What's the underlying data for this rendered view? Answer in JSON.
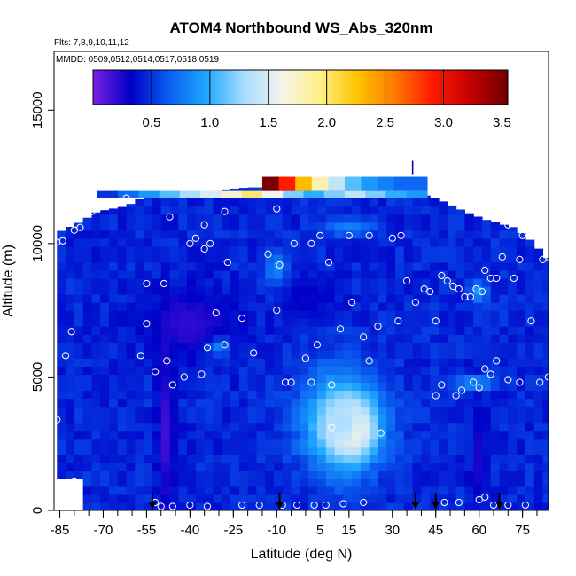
{
  "chart_data": {
    "type": "heatmap",
    "title": "ATOM4 Northbound WS_Abs_320nm",
    "subtitle_flights": "Flts: 7,8,9,10,11,12",
    "subtitle_dates": "MMDD: 0509,0512,0514,0517,0518,0519",
    "xlabel": "Latitude (deg N)",
    "ylabel": "Altitude (m)",
    "xlim": [
      -87,
      84
    ],
    "ylim": [
      0,
      17200
    ],
    "x_ticks": [
      -85,
      -70,
      -55,
      -40,
      -25,
      -10,
      5,
      15,
      30,
      45,
      60,
      75
    ],
    "x_tick_labels": [
      "-85",
      "-70",
      "-55",
      "-40",
      "-25",
      "-10",
      "5",
      "15",
      "30",
      "45",
      "60",
      "75"
    ],
    "y_ticks": [
      0,
      5000,
      10000,
      15000
    ],
    "y_tick_labels": [
      "0",
      "5000",
      "10000",
      "15000"
    ],
    "colorbar": {
      "range": [
        0,
        3.55
      ],
      "ticks": [
        0.5,
        1.0,
        1.5,
        2.0,
        2.5,
        3.0,
        3.5
      ],
      "tick_labels": [
        "0.5",
        "1.0",
        "1.5",
        "2.0",
        "2.5",
        "3.0",
        "3.5"
      ],
      "colors": [
        "#7a1fe0",
        "#0000c8",
        "#0a5cf0",
        "#1ea8ff",
        "#a8dcff",
        "#f4f4ec",
        "#fff08a",
        "#ffc400",
        "#ff7a00",
        "#ff1a00",
        "#c40000",
        "#6e0000"
      ]
    },
    "background_value": 0.45,
    "upper_bound": [
      [
        -86,
        10400
      ],
      [
        -78,
        10800
      ],
      [
        -72,
        11200
      ],
      [
        -62,
        11400
      ],
      [
        -55,
        11800
      ],
      [
        -40,
        11900
      ],
      [
        -20,
        12100
      ],
      [
        -5,
        12100
      ],
      [
        10,
        12000
      ],
      [
        25,
        12000
      ],
      [
        38,
        11900
      ],
      [
        45,
        11700
      ],
      [
        55,
        11200
      ],
      [
        62,
        10900
      ],
      [
        72,
        10600
      ],
      [
        78,
        10100
      ],
      [
        84,
        9400
      ]
    ],
    "features": [
      {
        "lat": 15,
        "alt": 3100,
        "value": 3.5,
        "sx": 7,
        "sy": 900
      },
      {
        "lat": 13,
        "alt": 3300,
        "value": 1.3,
        "sx": 14,
        "sy": 1900
      },
      {
        "lat": -31,
        "alt": 6200,
        "value": 1.3,
        "sx": 4,
        "sy": 350
      },
      {
        "lat": -10,
        "alt": 9000,
        "value": 0.9,
        "sx": 4,
        "sy": 700
      },
      {
        "lat": 15,
        "alt": 10600,
        "value": 0.8,
        "sx": 9,
        "sy": 300
      },
      {
        "lat": -48,
        "alt": 3000,
        "value": 0.15,
        "sx": 3,
        "sy": 3000
      },
      {
        "lat": 60,
        "alt": 2000,
        "value": 0.25,
        "sx": 3,
        "sy": 2000
      },
      {
        "lat": 58,
        "alt": 4800,
        "value": 0.9,
        "sx": 9,
        "sy": 250
      },
      {
        "lat": 60,
        "alt": 8200,
        "value": 0.9,
        "sx": 3,
        "sy": 400
      },
      {
        "lat": -40,
        "alt": 7000,
        "value": 0.2,
        "sx": 16,
        "sy": 1300
      },
      {
        "lat": 0,
        "alt": 8000,
        "value": 0.3,
        "sx": 10,
        "sy": 900
      }
    ],
    "top_strip": {
      "alt_range": [
        11700,
        12000
      ],
      "lat_range": [
        -72,
        42
      ],
      "values": [
        0.5,
        0.7,
        0.9,
        1.1,
        1.3,
        1.5,
        1.7,
        2.0,
        1.6,
        1.2,
        1.0,
        1.2,
        1.4,
        1.2,
        1.0,
        0.9
      ]
    },
    "peak_strip": {
      "alt_range": [
        12000,
        12500
      ],
      "lat_range": [
        -15,
        42
      ],
      "values": [
        3.5,
        2.9,
        2.3,
        1.8,
        1.4,
        1.1,
        0.9,
        0.8,
        0.7,
        0.7
      ]
    },
    "sample_points": [
      [
        -84,
        10100
      ],
      [
        -86,
        10050
      ],
      [
        -80,
        10500
      ],
      [
        -78,
        10600
      ],
      [
        -74,
        11200
      ],
      [
        -72,
        11300
      ],
      [
        -70,
        11400
      ],
      [
        -62,
        11700
      ],
      [
        -47,
        11000
      ],
      [
        -40,
        10000
      ],
      [
        -38,
        10200
      ],
      [
        -35,
        10700
      ],
      [
        -28,
        11200
      ],
      [
        -10,
        11300
      ],
      [
        5,
        10300
      ],
      [
        15,
        10300
      ],
      [
        22,
        10300
      ],
      [
        30,
        10200
      ],
      [
        33,
        10300
      ],
      [
        -81,
        6700
      ],
      [
        -83,
        5800
      ],
      [
        -57,
        5800
      ],
      [
        -55,
        7000
      ],
      [
        -52,
        5200
      ],
      [
        -48,
        5600
      ],
      [
        -46,
        4700
      ],
      [
        -42,
        5000
      ],
      [
        -36,
        5100
      ],
      [
        -34,
        6100
      ],
      [
        -31,
        7400
      ],
      [
        -28,
        6200
      ],
      [
        -22,
        7200
      ],
      [
        -18,
        5900
      ],
      [
        -10,
        7500
      ],
      [
        -7,
        4800
      ],
      [
        -5,
        4800
      ],
      [
        0,
        5700
      ],
      [
        2,
        4800
      ],
      [
        4,
        6200
      ],
      [
        9,
        4700
      ],
      [
        12,
        6800
      ],
      [
        16,
        7800
      ],
      [
        20,
        6500
      ],
      [
        22,
        5600
      ],
      [
        25,
        6900
      ],
      [
        32,
        7100
      ],
      [
        35,
        8600
      ],
      [
        -55,
        8500
      ],
      [
        -49,
        8500
      ],
      [
        -35,
        9800
      ],
      [
        -33,
        10000
      ],
      [
        -27,
        9300
      ],
      [
        -13,
        9600
      ],
      [
        -9,
        9200
      ],
      [
        -4,
        10000
      ],
      [
        2,
        10000
      ],
      [
        8,
        9300
      ],
      [
        38,
        7800
      ],
      [
        41,
        8300
      ],
      [
        43,
        8200
      ],
      [
        45,
        7100
      ],
      [
        47,
        8800
      ],
      [
        49,
        8600
      ],
      [
        51,
        8400
      ],
      [
        53,
        8300
      ],
      [
        55,
        8000
      ],
      [
        57,
        8000
      ],
      [
        59,
        8300
      ],
      [
        61,
        8200
      ],
      [
        62,
        9000
      ],
      [
        64,
        8700
      ],
      [
        66,
        8700
      ],
      [
        68,
        9500
      ],
      [
        72,
        8700
      ],
      [
        74,
        9400
      ],
      [
        75,
        10300
      ],
      [
        78,
        10800
      ],
      [
        80,
        11000
      ],
      [
        82,
        9400
      ],
      [
        84,
        9500
      ],
      [
        70,
        10700
      ],
      [
        72,
        10900
      ],
      [
        73,
        11000
      ],
      [
        45,
        4300
      ],
      [
        47,
        4700
      ],
      [
        52,
        4300
      ],
      [
        54,
        4500
      ],
      [
        58,
        4800
      ],
      [
        60,
        4600
      ],
      [
        62,
        5300
      ],
      [
        64,
        5100
      ],
      [
        66,
        5600
      ],
      [
        70,
        4900
      ],
      [
        74,
        4800
      ],
      [
        78,
        7100
      ],
      [
        81,
        4800
      ],
      [
        84,
        5000
      ],
      [
        -80,
        1100
      ],
      [
        -86,
        3400
      ],
      [
        -52,
        300
      ],
      [
        -50,
        150
      ],
      [
        -46,
        150
      ],
      [
        -40,
        200
      ],
      [
        -34,
        150
      ],
      [
        -22,
        200
      ],
      [
        -16,
        200
      ],
      [
        -8,
        200
      ],
      [
        -3,
        200
      ],
      [
        3,
        200
      ],
      [
        7,
        200
      ],
      [
        13,
        250
      ],
      [
        20,
        300
      ],
      [
        9,
        3100
      ],
      [
        26,
        2900
      ],
      [
        48,
        300
      ],
      [
        53,
        300
      ],
      [
        60,
        400
      ],
      [
        62,
        500
      ],
      [
        65,
        200
      ],
      [
        70,
        200
      ],
      [
        76,
        200
      ]
    ],
    "arrows_lat": [
      -53,
      -9,
      38,
      45,
      67
    ],
    "arrow_top_alt": 12600
  }
}
